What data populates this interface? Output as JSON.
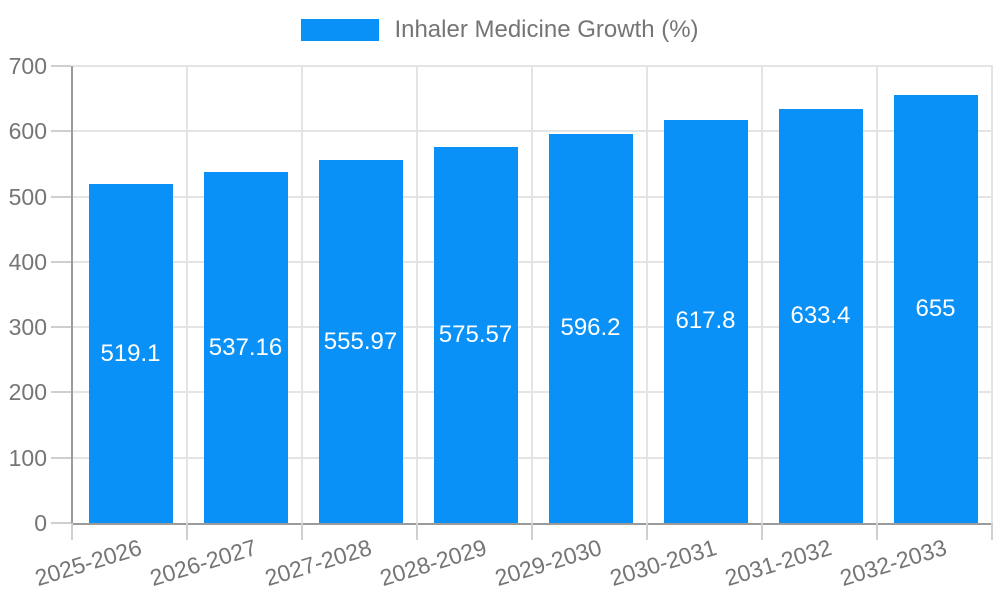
{
  "legend": {
    "label": "Inhaler Medicine Growth (%)"
  },
  "colors": {
    "bar": "#0991f8",
    "bar_label_text": "#ffffff",
    "axis_line": "#9b9b9b",
    "grid_line": "#e4e4e4",
    "tick_line": "#cfcfcf",
    "axis_text": "#757575",
    "legend_text": "#757575",
    "background": "#ffffff"
  },
  "chart_data": {
    "type": "bar",
    "title": "Inhaler Medicine Growth (%)",
    "series_name": "Inhaler Medicine Growth (%)",
    "categories": [
      "2025-2026",
      "2026-2027",
      "2027-2028",
      "2028-2029",
      "2029-2030",
      "2030-2031",
      "2031-2032",
      "2032-2033"
    ],
    "values": [
      519.1,
      537.16,
      555.97,
      575.57,
      596.2,
      617.8,
      633.4,
      655
    ],
    "value_labels": [
      "519.1",
      "537.16",
      "555.97",
      "575.57",
      "596.2",
      "617.8",
      "633.4",
      "655"
    ],
    "xlabel": "",
    "ylabel": "",
    "ylim": [
      0,
      700
    ],
    "yticks": [
      0,
      100,
      200,
      300,
      400,
      500,
      600,
      700
    ],
    "grid": true,
    "legend_position": "top",
    "bar_labels_visible": true,
    "x_label_rotation_deg": -17
  }
}
